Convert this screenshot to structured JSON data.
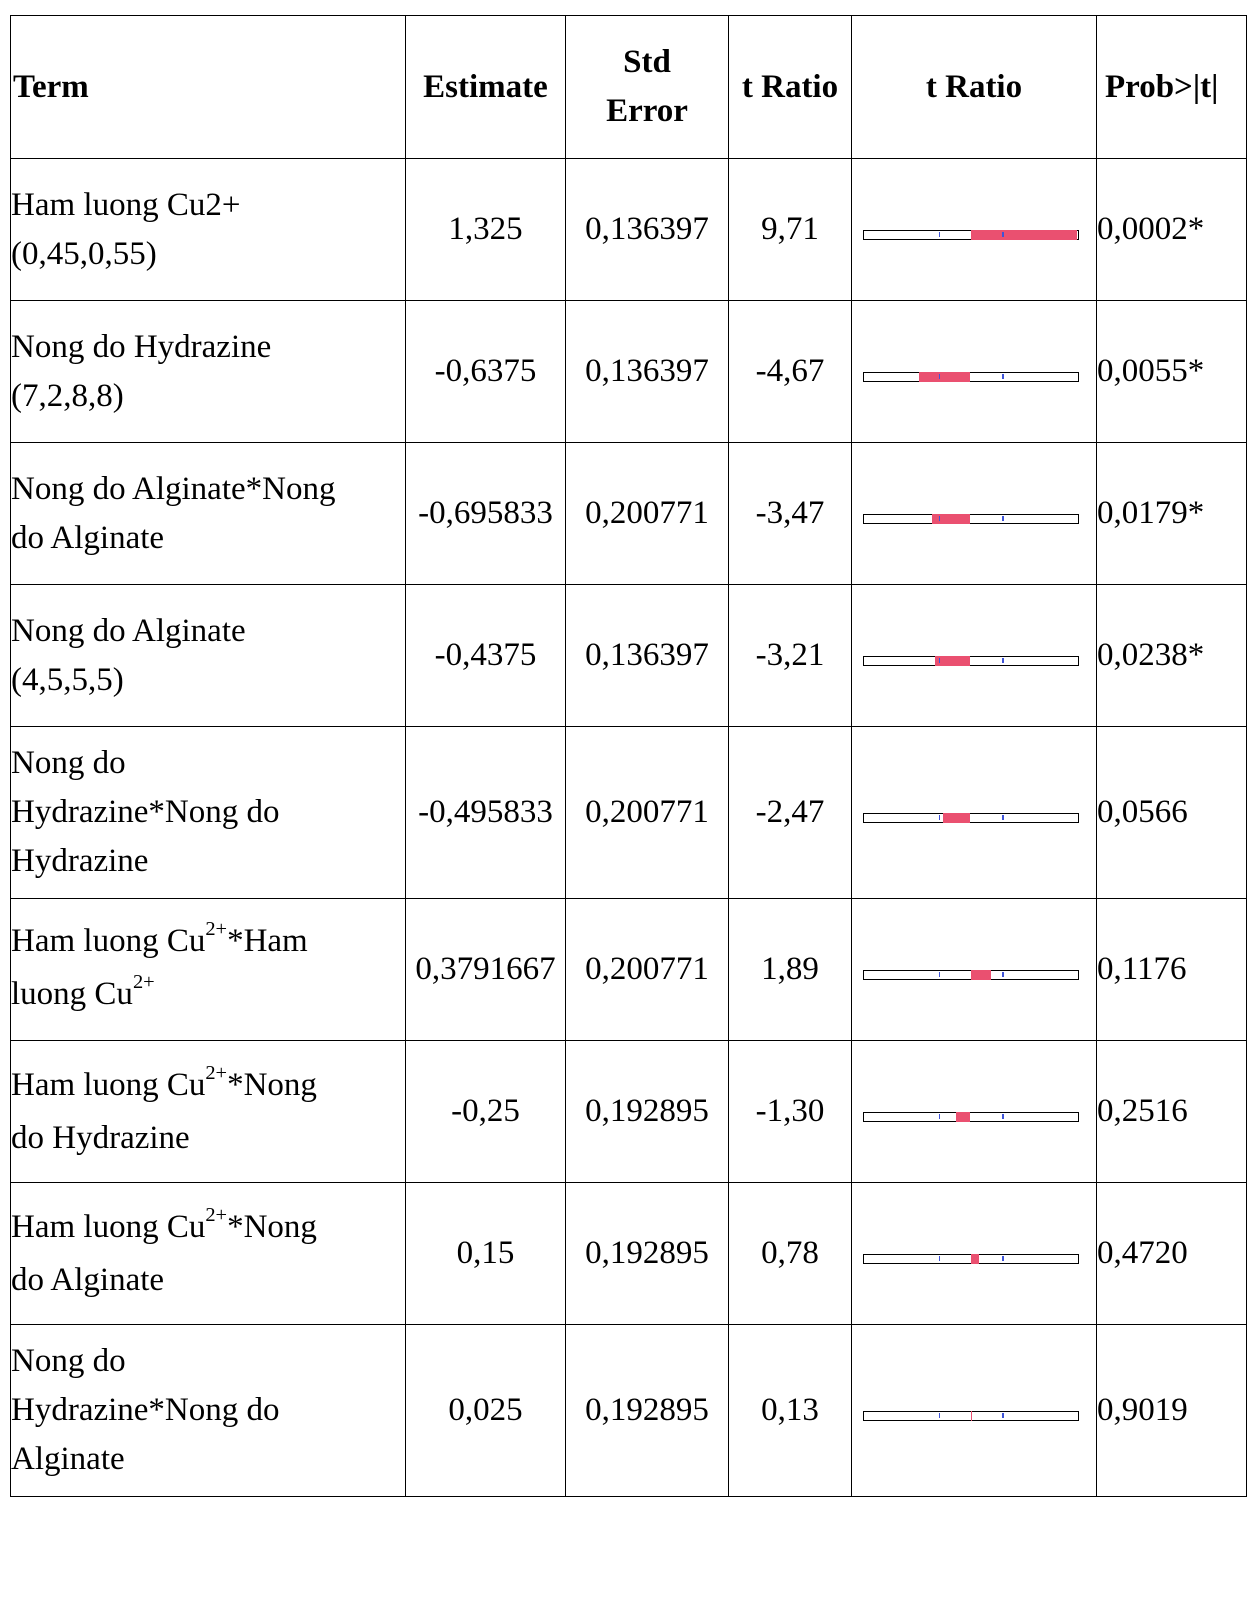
{
  "table": {
    "headers": {
      "term": "Term",
      "estimate": "Estimate",
      "std_error_line1": "Std",
      "std_error_line2": "Error",
      "t_ratio": "t Ratio",
      "t_ratio_bar": "t Ratio",
      "prob": "Prob>|t|"
    },
    "rows": [
      {
        "term_parts": [
          "Ham luong Cu2+",
          "(0,45,0,55)"
        ],
        "estimate": "1,325",
        "std_error": "0,136397",
        "t_ratio": "9,71",
        "t_value": 9.71,
        "prob": "0,0002*"
      },
      {
        "term_parts": [
          "Nong do Hydrazine",
          "(7,2,8,8)"
        ],
        "estimate": "-0,6375",
        "std_error": "0,136397",
        "t_ratio": "-4,67",
        "t_value": -4.67,
        "prob": "0,0055*"
      },
      {
        "term_parts": [
          "Nong do Alginate*Nong",
          "do Alginate"
        ],
        "estimate": "-0,695833",
        "std_error": "0,200771",
        "t_ratio": "-3,47",
        "t_value": -3.47,
        "prob": "0,0179*"
      },
      {
        "term_parts": [
          "Nong do Alginate",
          "(4,5,5,5)"
        ],
        "estimate": "-0,4375",
        "std_error": "0,136397",
        "t_ratio": "-3,21",
        "t_value": -3.21,
        "prob": "0,0238*"
      },
      {
        "term_parts": [
          "Nong do",
          "Hydrazine*Nong do",
          "Hydrazine"
        ],
        "estimate": "-0,495833",
        "std_error": "0,200771",
        "t_ratio": "-2,47",
        "t_value": -2.47,
        "prob": "0,0566"
      },
      {
        "term_parts": [
          "Ham luong Cu",
          "2+",
          "*Ham",
          "luong Cu",
          "2+"
        ],
        "estimate": "0,3791667",
        "std_error": "0,200771",
        "t_ratio": "1,89",
        "t_value": 1.89,
        "prob": "0,1176"
      },
      {
        "term_parts": [
          "Ham luong Cu",
          "2+",
          "*Nong",
          "do Hydrazine"
        ],
        "estimate": "-0,25",
        "std_error": "0,192895",
        "t_ratio": "-1,30",
        "t_value": -1.3,
        "prob": "0,2516"
      },
      {
        "term_parts": [
          "Ham luong Cu",
          "2+",
          "*Nong",
          "do Alginate"
        ],
        "estimate": "0,15",
        "std_error": "0,192895",
        "t_ratio": "0,78",
        "t_value": 0.78,
        "prob": "0,4720"
      },
      {
        "term_parts": [
          "Nong do",
          "Hydrazine*Nong do",
          "Alginate"
        ],
        "estimate": "0,025",
        "std_error": "0,192895",
        "t_ratio": "0,13",
        "t_value": 0.13,
        "prob": "0,9019"
      }
    ],
    "bar_colors": {
      "fill": "#ea5070",
      "guide": "#3f54d8",
      "outline": "#000000"
    }
  }
}
